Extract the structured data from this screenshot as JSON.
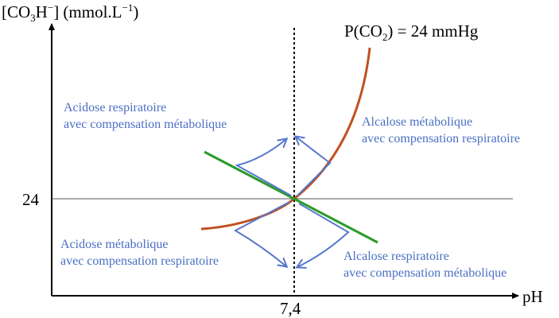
{
  "diagram": {
    "y_axis": {
      "label_parts": [
        "[CO",
        "3",
        "H",
        "−",
        "] (mmol.L",
        "−1",
        ")"
      ],
      "tick": "24"
    },
    "x_axis": {
      "label": "pH",
      "tick": "7,4"
    },
    "curve_label_parts": [
      "P(CO",
      "2",
      ") = 24 mmHg"
    ],
    "annotations": [
      {
        "lines": [
          "Acidose respiratoire",
          "avec compensation métabolique"
        ]
      },
      {
        "lines": [
          "Alcalose métabolique",
          "avec compensation respiratoire"
        ]
      },
      {
        "lines": [
          "Acidose métabolique",
          "avec compensation respiratoire"
        ]
      },
      {
        "lines": [
          "Alcalose respiratoire",
          "avec compensation métabolique"
        ]
      }
    ]
  }
}
